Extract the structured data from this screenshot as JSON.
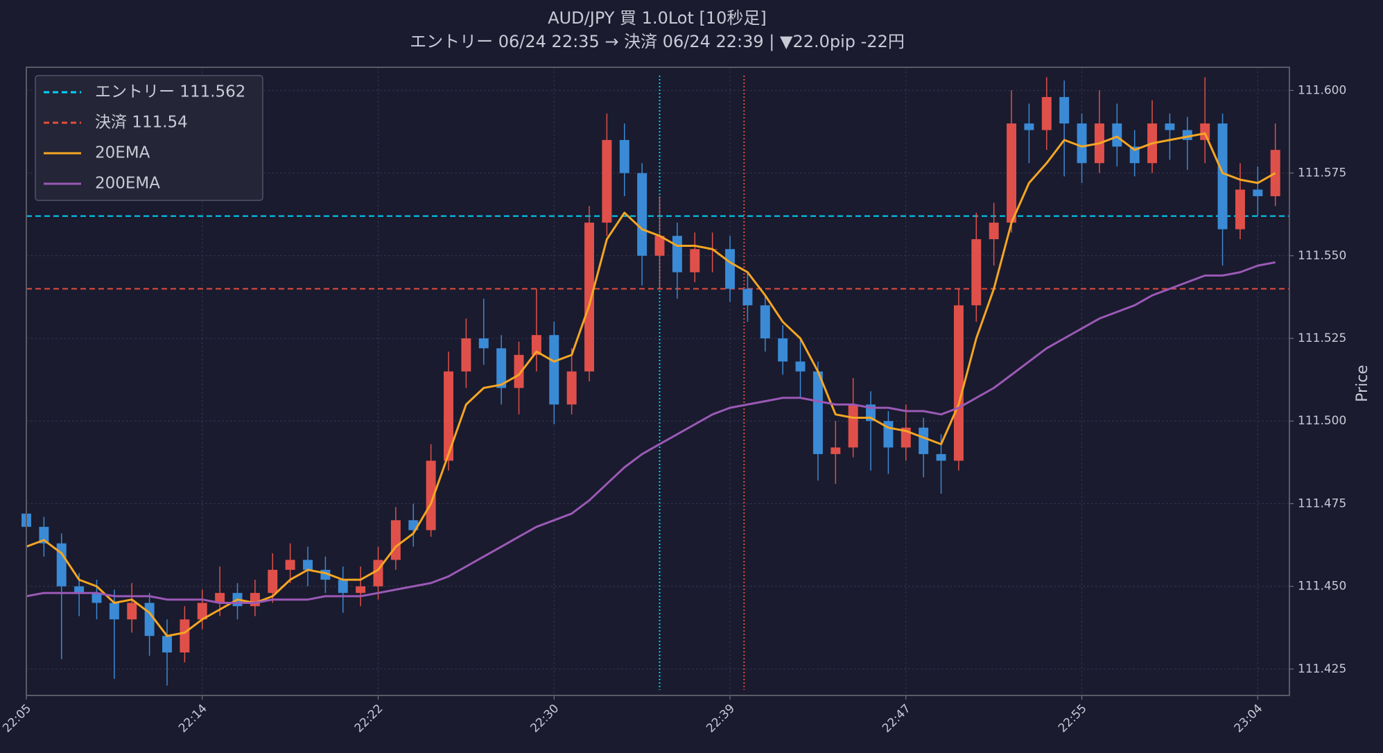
{
  "chart_data": {
    "type": "candlestick",
    "title": "AUD/JPY 買 1.0Lot [10秒足]",
    "subtitle": "エントリー 06/24 22:35 → 決済 06/24 22:39 | ▼22.0pip -22円",
    "y_label": "Price",
    "xlim": [
      0,
      359
    ],
    "xticks": [
      {
        "value": 0,
        "label": "22:05"
      },
      {
        "value": 50,
        "label": "22:14"
      },
      {
        "value": 100,
        "label": "22:22"
      },
      {
        "value": 150,
        "label": "22:30"
      },
      {
        "value": 200,
        "label": "22:39"
      },
      {
        "value": 250,
        "label": "22:47"
      },
      {
        "value": 300,
        "label": "22:55"
      },
      {
        "value": 350,
        "label": "23:04"
      }
    ],
    "ylim": [
      111.417,
      111.607
    ],
    "yticks": [
      111.425,
      {
        "value": 111.45,
        "label": "111.450"
      },
      111.475,
      {
        "value": 111.5,
        "label": "111.500"
      },
      111.525,
      {
        "value": 111.55,
        "label": "111.550"
      },
      111.575,
      {
        "value": 111.6,
        "label": "111.600"
      }
    ],
    "grid": true,
    "legend": "upper left",
    "up_color": "#e0504a",
    "down_color": "#3a8ad6",
    "x": [
      0,
      5,
      10,
      15,
      20,
      25,
      30,
      35,
      40,
      45,
      50,
      55,
      60,
      65,
      70,
      75,
      80,
      85,
      90,
      95,
      100,
      105,
      110,
      115,
      120,
      125,
      130,
      135,
      140,
      145,
      150,
      155,
      160,
      165,
      170,
      175,
      180,
      185,
      190,
      195,
      200,
      205,
      210,
      215,
      220,
      225,
      230,
      235,
      240,
      245,
      250,
      255,
      260,
      265,
      270,
      275,
      280,
      285,
      290,
      295,
      300,
      305,
      310,
      315,
      320,
      325,
      330,
      335,
      340,
      345,
      350,
      355
    ],
    "open": [
      111.472,
      111.468,
      111.463,
      111.45,
      111.448,
      111.445,
      111.44,
      111.445,
      111.435,
      111.43,
      111.44,
      111.445,
      111.448,
      111.444,
      111.448,
      111.455,
      111.458,
      111.455,
      111.452,
      111.448,
      111.45,
      111.458,
      111.47,
      111.467,
      111.488,
      111.515,
      111.525,
      111.522,
      111.51,
      111.52,
      111.526,
      111.505,
      111.515,
      111.56,
      111.585,
      111.575,
      111.55,
      111.556,
      111.545,
      111.552,
      111.552,
      111.54,
      111.535,
      111.525,
      111.518,
      111.515,
      111.49,
      111.492,
      111.505,
      111.5,
      111.492,
      111.498,
      111.49,
      111.488,
      111.535,
      111.555,
      111.56,
      111.59,
      111.588,
      111.598,
      111.59,
      111.578,
      111.59,
      111.583,
      111.578,
      111.59,
      111.588,
      111.585,
      111.59,
      111.558,
      111.57,
      111.568
    ],
    "high": [
      111.476,
      111.471,
      111.466,
      111.454,
      111.452,
      111.449,
      111.451,
      111.448,
      111.44,
      111.444,
      111.449,
      111.456,
      111.451,
      111.452,
      111.46,
      111.463,
      111.462,
      111.459,
      111.456,
      111.456,
      111.462,
      111.474,
      111.475,
      111.493,
      111.521,
      111.531,
      111.537,
      111.526,
      111.524,
      111.54,
      111.53,
      111.522,
      111.565,
      111.593,
      111.59,
      111.578,
      111.568,
      111.56,
      111.557,
      111.557,
      111.556,
      111.545,
      111.538,
      111.529,
      111.525,
      111.518,
      111.5,
      111.513,
      111.509,
      111.503,
      111.505,
      111.501,
      111.496,
      111.54,
      111.563,
      111.566,
      111.6,
      111.596,
      111.604,
      111.603,
      111.593,
      111.6,
      111.596,
      111.588,
      111.597,
      111.593,
      111.592,
      111.604,
      111.593,
      111.578,
      111.577,
      111.59
    ],
    "low": [
      111.464,
      111.459,
      111.428,
      111.441,
      111.44,
      111.422,
      111.436,
      111.429,
      111.42,
      111.427,
      111.437,
      111.441,
      111.44,
      111.441,
      111.445,
      111.451,
      111.45,
      111.448,
      111.442,
      111.444,
      111.446,
      111.455,
      111.462,
      111.465,
      111.485,
      111.51,
      111.517,
      111.505,
      111.502,
      111.515,
      111.499,
      111.502,
      111.512,
      111.556,
      111.568,
      111.541,
      111.54,
      111.537,
      111.542,
      111.545,
      111.536,
      111.53,
      111.521,
      111.514,
      111.507,
      111.482,
      111.481,
      111.489,
      111.485,
      111.484,
      111.488,
      111.483,
      111.478,
      111.485,
      111.53,
      111.547,
      111.557,
      111.578,
      111.582,
      111.574,
      111.572,
      111.575,
      111.577,
      111.574,
      111.575,
      111.579,
      111.576,
      111.578,
      111.547,
      111.555,
      111.562,
      111.565
    ],
    "close": [
      111.468,
      111.463,
      111.45,
      111.448,
      111.445,
      111.44,
      111.445,
      111.435,
      111.43,
      111.44,
      111.445,
      111.448,
      111.444,
      111.448,
      111.455,
      111.458,
      111.455,
      111.452,
      111.448,
      111.45,
      111.458,
      111.47,
      111.467,
      111.488,
      111.515,
      111.525,
      111.522,
      111.51,
      111.52,
      111.526,
      111.505,
      111.515,
      111.56,
      111.585,
      111.575,
      111.55,
      111.556,
      111.545,
      111.552,
      111.552,
      111.54,
      111.535,
      111.525,
      111.518,
      111.515,
      111.49,
      111.492,
      111.505,
      111.5,
      111.492,
      111.498,
      111.49,
      111.488,
      111.535,
      111.555,
      111.56,
      111.59,
      111.588,
      111.598,
      111.59,
      111.578,
      111.59,
      111.583,
      111.578,
      111.59,
      111.588,
      111.585,
      111.59,
      111.558,
      111.57,
      111.568,
      111.582
    ],
    "series": [
      {
        "name": "20EMA",
        "color": "#f5a623",
        "values": [
          111.462,
          111.464,
          111.46,
          111.452,
          111.45,
          111.445,
          111.446,
          111.442,
          111.435,
          111.436,
          111.44,
          111.443,
          111.446,
          111.445,
          111.447,
          111.452,
          111.455,
          111.454,
          111.452,
          111.452,
          111.455,
          111.462,
          111.466,
          111.475,
          111.49,
          111.505,
          111.51,
          111.511,
          111.514,
          111.521,
          111.518,
          111.52,
          111.535,
          111.555,
          111.563,
          111.558,
          111.556,
          111.553,
          111.553,
          111.552,
          111.548,
          111.545,
          111.538,
          111.53,
          111.525,
          111.515,
          111.502,
          111.501,
          111.501,
          111.498,
          111.497,
          111.495,
          111.493,
          111.505,
          111.525,
          111.54,
          111.56,
          111.572,
          111.578,
          111.585,
          111.583,
          111.584,
          111.586,
          111.582,
          111.584,
          111.585,
          111.586,
          111.587,
          111.575,
          111.573,
          111.572,
          111.575
        ]
      },
      {
        "name": "200EMA",
        "color": "#9b59b6",
        "values": [
          111.447,
          111.448,
          111.448,
          111.448,
          111.448,
          111.447,
          111.447,
          111.447,
          111.446,
          111.446,
          111.446,
          111.445,
          111.445,
          111.445,
          111.446,
          111.446,
          111.446,
          111.447,
          111.447,
          111.447,
          111.448,
          111.449,
          111.45,
          111.451,
          111.453,
          111.456,
          111.459,
          111.462,
          111.465,
          111.468,
          111.47,
          111.472,
          111.476,
          111.481,
          111.486,
          111.49,
          111.493,
          111.496,
          111.499,
          111.502,
          111.504,
          111.505,
          111.506,
          111.507,
          111.507,
          111.506,
          111.505,
          111.505,
          111.504,
          111.504,
          111.503,
          111.503,
          111.502,
          111.504,
          111.507,
          111.51,
          111.514,
          111.518,
          111.522,
          111.525,
          111.528,
          111.531,
          111.533,
          111.535,
          111.538,
          111.54,
          111.542,
          111.544,
          111.544,
          111.545,
          111.547,
          111.548
        ]
      }
    ],
    "hlines": [
      {
        "name": "エントリー 111.562",
        "value": 111.562,
        "color": "#00d4ff"
      },
      {
        "name": "決済 111.54",
        "value": 111.54,
        "color": "#e74c3c"
      }
    ],
    "vlines": [
      {
        "value": 180,
        "color": "#00d4ff"
      },
      {
        "value": 204,
        "color": "#e74c3c"
      }
    ]
  }
}
